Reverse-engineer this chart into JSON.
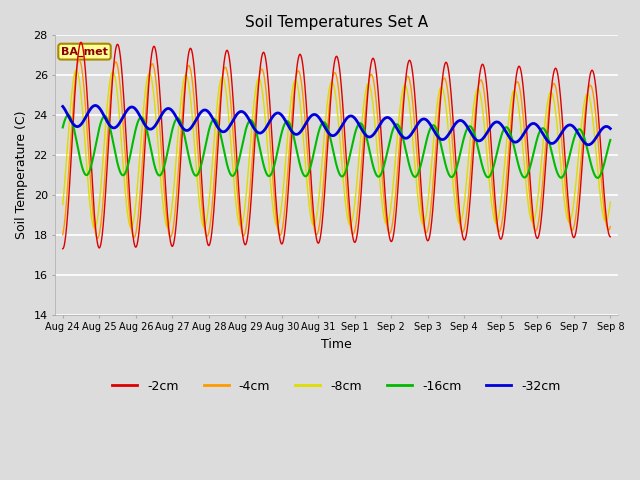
{
  "title": "Soil Temperatures Set A",
  "xlabel": "Time",
  "ylabel": "Soil Temperature (C)",
  "ylim": [
    14,
    28
  ],
  "annotation": "BA_met",
  "legend_labels": [
    "-2cm",
    "-4cm",
    "-8cm",
    "-16cm",
    "-32cm"
  ],
  "legend_colors": [
    "#dd0000",
    "#ff9900",
    "#dddd00",
    "#00bb00",
    "#0000dd"
  ],
  "line_widths": [
    1.0,
    1.0,
    1.0,
    1.5,
    2.0
  ],
  "background_color": "#dcdcdc",
  "plot_bg_color": "#dcdcdc",
  "grid_color": "#ffffff",
  "tick_dates": [
    "Aug 24",
    "Aug 25",
    "Aug 26",
    "Aug 27",
    "Aug 28",
    "Aug 29",
    "Aug 30",
    "Aug 31",
    "Sep 1",
    "Sep 2",
    "Sep 3",
    "Sep 4",
    "Sep 5",
    "Sep 6",
    "Sep 7",
    "Sep 8"
  ],
  "n_points": 2000
}
